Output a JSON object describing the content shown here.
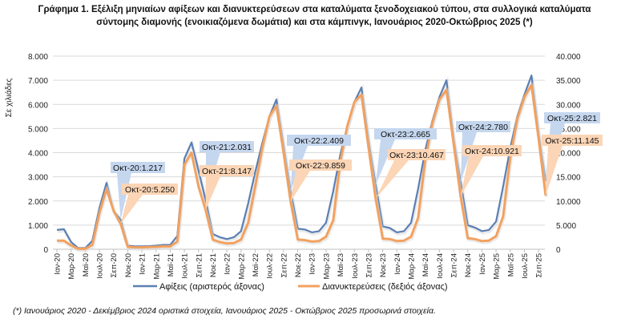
{
  "title_line1": "Γράφημα 1. Εξέλιξη μηνιαίων αφίξεων και διανυκτερεύσεων στα καταλύματα ξενοδοχειακού τύπου, στα συλλογικά καταλύματα",
  "title_line2": "σύντομης διαμονής (ενοικιαζόμενα δωμάτια) και στα κάμπινγκ, Ιανουάριος 2020-Οκτώβριος 2025 (*)",
  "footnote": "(*) Ιανουάριος 2020 - Δεκέμβριος 2024 οριστικά στοιχεία, Ιανουάριος 2025 - Οκτώβριος 2025 προσωρινά στοιχεία.",
  "colors": {
    "arrivals": "#5b7fb3",
    "nights": "#f2a15f",
    "arrivals_label_bg": "#c5d7ef",
    "nights_label_bg": "#fbd5b5",
    "grid": "#d9d9d9"
  },
  "chart_data": {
    "type": "line",
    "ylabel": "Σε χιλιάδες",
    "y_left": {
      "range": [
        0,
        8000
      ],
      "ticks": [
        "0",
        "1.000",
        "2.000",
        "3.000",
        "4.000",
        "5.000",
        "6.000",
        "7.000",
        "8.000"
      ]
    },
    "y_right": {
      "range": [
        0,
        40000
      ],
      "ticks": [
        "0",
        "5.000",
        "10.000",
        "15.000",
        "20.000",
        "25.000",
        "30.000",
        "35.000",
        "40.000"
      ]
    },
    "x_tick_labels": [
      "Ιαν-20",
      "Μαρ-20",
      "Μαϊ-20",
      "Ιουλ-20",
      "Σεπ-20",
      "Νοε-20",
      "Ιαν-21",
      "Μαρ-21",
      "Μαϊ-21",
      "Ιουλ-21",
      "Σεπ-21",
      "Νοε-21",
      "Ιαν-22",
      "Μαρ-22",
      "Μαϊ-22",
      "Ιουλ-22",
      "Σεπ-22",
      "Νοε-22",
      "Ιαν-23",
      "Μαρ-23",
      "Μαϊ-23",
      "Ιουλ-23",
      "Σεπ-23",
      "Νοε-23",
      "Ιαν-24",
      "Μαρ-24",
      "Μαϊ-24",
      "Ιουλ-24",
      "Σεπ-24",
      "Νοε-24",
      "Ιαν-25",
      "Μαρ-25",
      "Μαϊ-25",
      "Ιουλ-25",
      "Σεπ-25"
    ],
    "x_start": "2020-01",
    "x_end": "2025-10",
    "grid": true,
    "legend_placement": "bottom",
    "series": [
      {
        "name": "Αφίξεις (αριστερός άξονας)",
        "axis": "left",
        "unit": "thousands",
        "values": [
          0.8,
          0.83,
          0.3,
          0.05,
          0.05,
          0.35,
          1.7,
          2.75,
          1.6,
          1.217,
          0.15,
          0.12,
          0.12,
          0.13,
          0.15,
          0.18,
          0.18,
          0.55,
          3.75,
          4.42,
          3.25,
          2.031,
          0.63,
          0.5,
          0.42,
          0.5,
          0.75,
          1.9,
          3.2,
          4.4,
          5.5,
          6.2,
          4.3,
          2.409,
          0.85,
          0.82,
          0.7,
          0.75,
          1.1,
          2.4,
          3.9,
          5.1,
          6.1,
          6.7,
          4.5,
          2.665,
          0.95,
          0.88,
          0.7,
          0.75,
          1.1,
          2.5,
          4.1,
          5.3,
          6.3,
          7.0,
          4.6,
          2.78,
          1.0,
          0.9,
          0.75,
          0.8,
          1.15,
          2.6,
          4.2,
          5.5,
          6.4,
          7.2,
          4.8,
          2.821
        ]
      },
      {
        "name": "Διανυκτερεύσεις (δεξιός άξονας)",
        "axis": "right",
        "unit": "thousands",
        "values": [
          1.8,
          1.8,
          0.8,
          0.1,
          0.1,
          0.9,
          7.5,
          12.5,
          8.0,
          5.25,
          0.5,
          0.4,
          0.4,
          0.45,
          0.5,
          0.6,
          0.6,
          1.6,
          17.5,
          20.0,
          13.0,
          8.147,
          2.0,
          1.5,
          1.2,
          1.3,
          2.0,
          5.5,
          13.0,
          21.0,
          27.5,
          29.7,
          20.0,
          9.859,
          2.0,
          1.9,
          1.6,
          1.7,
          2.6,
          6.0,
          18.0,
          25.5,
          30.5,
          32.0,
          21.0,
          10.467,
          2.2,
          2.1,
          1.7,
          1.8,
          2.6,
          6.5,
          18.5,
          26.0,
          31.0,
          33.0,
          22.0,
          10.921,
          2.3,
          2.1,
          1.7,
          1.8,
          2.7,
          6.8,
          19.0,
          27.0,
          31.5,
          34.0,
          23.0,
          11.145
        ]
      }
    ],
    "annotations": [
      {
        "series": 0,
        "month_index": 9,
        "text": "Οκτ-20:1.217"
      },
      {
        "series": 1,
        "month_index": 9,
        "text": "Οκτ-20:5.250"
      },
      {
        "series": 0,
        "month_index": 21,
        "text": "Οκτ-21:2.031"
      },
      {
        "series": 1,
        "month_index": 21,
        "text": "Οκτ-21:8.147"
      },
      {
        "series": 0,
        "month_index": 33,
        "text": "Οκτ-22:2.409"
      },
      {
        "series": 1,
        "month_index": 33,
        "text": "Οκτ-22:9.859"
      },
      {
        "series": 0,
        "month_index": 45,
        "text": "Οκτ-23:2.665"
      },
      {
        "series": 1,
        "month_index": 45,
        "text": "Οκτ-23:10.467"
      },
      {
        "series": 0,
        "month_index": 57,
        "text": "Οκτ-24:2.780"
      },
      {
        "series": 1,
        "month_index": 57,
        "text": "Οκτ-24:10.921"
      },
      {
        "series": 0,
        "month_index": 69,
        "text": "Οκτ-25:2.821"
      },
      {
        "series": 1,
        "month_index": 69,
        "text": "Οκτ-25:11.145"
      }
    ]
  }
}
